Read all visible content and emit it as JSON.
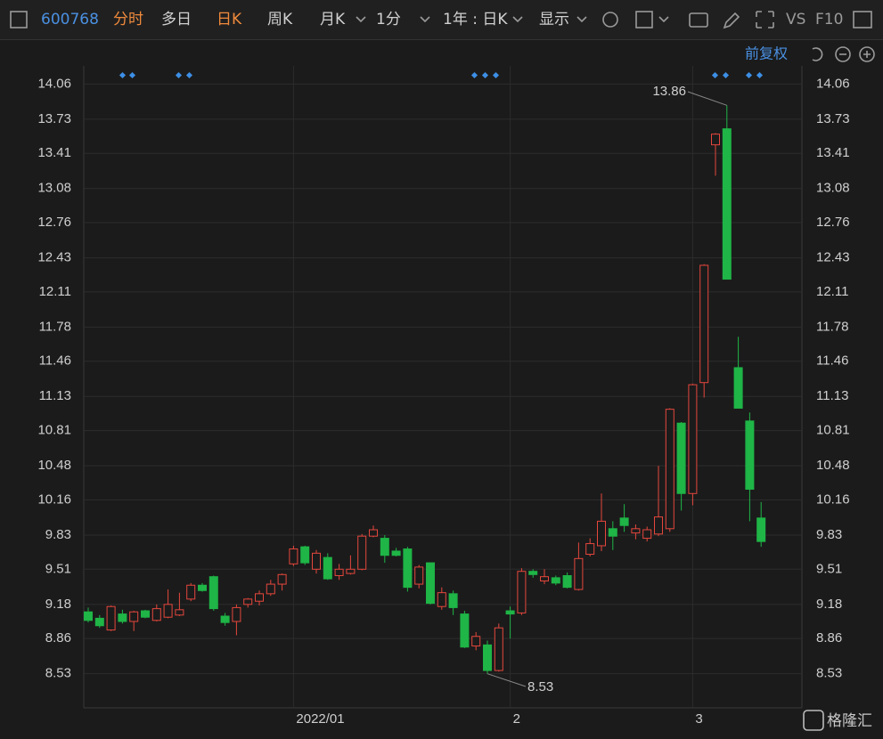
{
  "toolbar": {
    "code": "600768",
    "tabs": [
      "分时",
      "多日",
      "日K",
      "周K",
      "月K",
      "1分",
      "1年 : 日K",
      "显示"
    ],
    "vs": "VS",
    "f10": "F10",
    "adjust": "前复权"
  },
  "watermark": "格隆汇",
  "chart_data": {
    "type": "candlestick",
    "categories": [
      null,
      null,
      null,
      null,
      null,
      null,
      null,
      null,
      null,
      null,
      null,
      null,
      null,
      null,
      null,
      null,
      null,
      null,
      "2022/01",
      null,
      null,
      null,
      null,
      null,
      null,
      null,
      null,
      null,
      null,
      null,
      null,
      null,
      null,
      null,
      null,
      null,
      null,
      "2",
      null,
      null,
      null,
      null,
      null,
      null,
      null,
      null,
      null,
      null,
      null,
      null,
      null,
      null,
      null,
      "3",
      null,
      null,
      null,
      null,
      null,
      null
    ],
    "open": [
      9.11,
      9.05,
      8.94,
      9.09,
      9.02,
      9.12,
      9.03,
      9.06,
      9.08,
      9.23,
      9.36,
      9.44,
      9.07,
      9.02,
      9.18,
      9.21,
      9.28,
      9.37,
      9.56,
      9.72,
      9.51,
      9.62,
      9.45,
      9.47,
      9.51,
      9.82,
      9.8,
      9.68,
      9.7,
      9.37,
      9.57,
      9.16,
      9.28,
      9.09,
      8.79,
      8.8,
      8.56,
      9.12,
      9.1,
      9.49,
      9.4,
      9.43,
      9.45,
      9.32,
      9.65,
      9.73,
      9.89,
      9.99,
      9.85,
      9.8,
      9.84,
      9.89,
      10.88,
      10.22,
      11.26,
      13.49,
      13.64,
      11.4,
      10.9,
      9.99
    ],
    "high": [
      9.15,
      9.08,
      9.17,
      9.13,
      9.12,
      9.13,
      9.18,
      9.32,
      9.29,
      9.38,
      9.38,
      9.45,
      9.1,
      9.18,
      9.24,
      9.31,
      9.41,
      9.47,
      9.73,
      9.73,
      9.69,
      9.66,
      9.56,
      9.64,
      9.84,
      9.92,
      9.83,
      9.71,
      9.72,
      9.55,
      9.57,
      9.34,
      9.31,
      9.12,
      8.92,
      8.84,
      9.0,
      9.16,
      9.52,
      9.51,
      9.51,
      9.45,
      9.48,
      9.76,
      9.8,
      10.22,
      9.96,
      10.12,
      9.93,
      9.91,
      10.48,
      11.02,
      10.89,
      11.25,
      12.37,
      13.6,
      13.86,
      11.69,
      10.98,
      10.14
    ],
    "low": [
      9.01,
      8.96,
      8.93,
      9.0,
      8.93,
      9.05,
      9.02,
      9.05,
      9.07,
      9.21,
      9.3,
      9.12,
      8.98,
      8.89,
      9.15,
      9.17,
      9.26,
      9.31,
      9.54,
      9.55,
      9.47,
      9.41,
      9.41,
      9.46,
      9.5,
      9.81,
      9.57,
      9.63,
      9.3,
      9.33,
      9.18,
      9.13,
      9.08,
      8.77,
      8.75,
      8.53,
      8.55,
      8.86,
      9.08,
      9.43,
      9.37,
      9.36,
      9.33,
      9.31,
      9.63,
      9.68,
      9.69,
      9.86,
      9.79,
      9.77,
      9.82,
      9.86,
      10.06,
      10.11,
      11.12,
      13.2,
      12.23,
      11.02,
      9.96,
      9.72
    ],
    "close": [
      9.03,
      8.98,
      9.16,
      9.02,
      9.11,
      9.06,
      9.14,
      9.18,
      9.13,
      9.36,
      9.31,
      9.14,
      9.01,
      9.15,
      9.23,
      9.28,
      9.37,
      9.46,
      9.7,
      9.57,
      9.66,
      9.42,
      9.51,
      9.51,
      9.82,
      9.88,
      9.64,
      9.64,
      9.34,
      9.53,
      9.19,
      9.29,
      9.15,
      8.78,
      8.88,
      8.56,
      8.96,
      9.09,
      9.49,
      9.46,
      9.44,
      9.38,
      9.34,
      9.61,
      9.75,
      9.96,
      9.82,
      9.92,
      9.89,
      9.88,
      10.0,
      11.01,
      10.22,
      11.24,
      12.36,
      13.59,
      12.23,
      11.02,
      10.26,
      9.77
    ],
    "up_color": "#e5473d",
    "down_color": "#1fb547",
    "ylim": [
      8.21,
      14.23
    ],
    "yticks": [
      14.06,
      13.73,
      13.41,
      13.08,
      12.76,
      12.43,
      12.11,
      11.78,
      11.46,
      11.13,
      10.81,
      10.48,
      10.16,
      9.83,
      9.51,
      9.18,
      8.86,
      8.53
    ],
    "max_label": 13.86,
    "min_label": 8.53,
    "grid": true
  }
}
